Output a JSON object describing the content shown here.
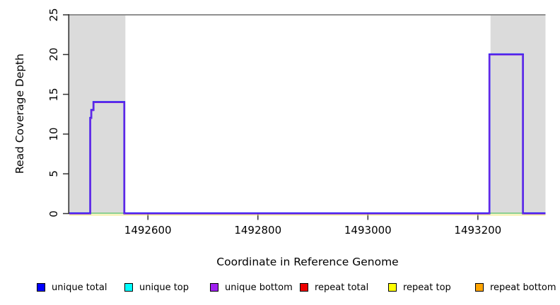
{
  "chart_data": {
    "type": "line",
    "title": "",
    "xlabel": "Coordinate in Reference Genome",
    "ylabel": "Read Coverage Depth",
    "xlim": [
      1492457,
      1493323
    ],
    "ylim": [
      0,
      25
    ],
    "x_ticks": [
      1492600,
      1492800,
      1493000,
      1493200
    ],
    "x_tick_labels": [
      "1492600",
      "1492800",
      "1493000",
      "1493200"
    ],
    "y_ticks": [
      0,
      5,
      10,
      15,
      20,
      25
    ],
    "y_tick_labels": [
      "0",
      "5",
      "10",
      "15",
      "20",
      "25"
    ],
    "grid": false,
    "legend_position": "bottom",
    "shaded_regions": [
      {
        "name": "repeat-region-left",
        "x0": 1492457,
        "x1": 1492559,
        "color": "#dbdbdb"
      },
      {
        "name": "repeat-region-right",
        "x0": 1493223,
        "x1": 1493323,
        "color": "#dbdbdb"
      }
    ],
    "series": [
      {
        "name": "unique total",
        "color": "#0000FF",
        "points": [
          [
            1492457,
            0
          ],
          [
            1492495,
            0
          ],
          [
            1492495,
            12
          ],
          [
            1492497,
            12
          ],
          [
            1492497,
            13
          ],
          [
            1492501,
            13
          ],
          [
            1492501,
            14
          ],
          [
            1492557,
            14
          ],
          [
            1492557,
            0
          ],
          [
            1493221,
            0
          ],
          [
            1493221,
            20
          ],
          [
            1493282,
            20
          ],
          [
            1493282,
            0
          ],
          [
            1493323,
            0
          ]
        ]
      },
      {
        "name": "unique top",
        "color": "#00FFFF",
        "points": [
          [
            1492457,
            0
          ],
          [
            1493323,
            0
          ]
        ]
      },
      {
        "name": "unique bottom",
        "color": "#A020F0",
        "points": [
          [
            1492457,
            0
          ],
          [
            1492495,
            0
          ],
          [
            1492495,
            12
          ],
          [
            1492497,
            12
          ],
          [
            1492497,
            13
          ],
          [
            1492501,
            13
          ],
          [
            1492501,
            14
          ],
          [
            1492557,
            14
          ],
          [
            1492557,
            0
          ],
          [
            1493221,
            0
          ],
          [
            1493221,
            20
          ],
          [
            1493282,
            20
          ],
          [
            1493282,
            0
          ],
          [
            1493323,
            0
          ]
        ]
      },
      {
        "name": "repeat total",
        "color": "#EE0000",
        "points": [
          [
            1492457,
            0
          ],
          [
            1493323,
            0
          ]
        ]
      },
      {
        "name": "repeat top",
        "color": "#FFFF00",
        "points": [
          [
            1492457,
            0
          ],
          [
            1493323,
            0
          ]
        ]
      },
      {
        "name": "repeat bottom",
        "color": "#FFA500",
        "points": [
          [
            1492457,
            0
          ],
          [
            1493323,
            0
          ]
        ]
      }
    ],
    "render_lines": [
      {
        "name": "repeat-zero-line",
        "color": "#EDE45C",
        "width": 1.2,
        "opacity": 0.8,
        "dy": 2,
        "points": [
          [
            1492457,
            0
          ],
          [
            1493323,
            0
          ]
        ]
      },
      {
        "name": "zero-overlap-left",
        "color": "#6EC66E",
        "width": 1.6,
        "opacity": 1,
        "dy": -0.5,
        "points": [
          [
            1492495,
            0
          ],
          [
            1492557,
            0
          ]
        ]
      },
      {
        "name": "zero-overlap-right",
        "color": "#6EC66E",
        "width": 1.6,
        "opacity": 1,
        "dy": -0.5,
        "points": [
          [
            1493221,
            0
          ],
          [
            1493282,
            0
          ]
        ]
      },
      {
        "name": "unique-total-line",
        "color": "#2212F5",
        "width": 2.6,
        "opacity": 1,
        "dy": -0.3,
        "points": [
          [
            1492457,
            0
          ],
          [
            1492495,
            0
          ],
          [
            1492495,
            12
          ],
          [
            1492497,
            12
          ],
          [
            1492497,
            13
          ],
          [
            1492501,
            13
          ],
          [
            1492501,
            14
          ],
          [
            1492557,
            14
          ],
          [
            1492557,
            0
          ],
          [
            1493221,
            0
          ],
          [
            1493221,
            20
          ],
          [
            1493282,
            20
          ],
          [
            1493282,
            0
          ],
          [
            1493323,
            0
          ]
        ]
      },
      {
        "name": "unique-bottom-line",
        "color": "#742BE2",
        "width": 1.5,
        "opacity": 1,
        "dy": 0.4,
        "points": [
          [
            1492457,
            0
          ],
          [
            1492495,
            0
          ],
          [
            1492495,
            12
          ],
          [
            1492497,
            12
          ],
          [
            1492497,
            13
          ],
          [
            1492501,
            13
          ],
          [
            1492501,
            14
          ],
          [
            1492557,
            14
          ],
          [
            1492557,
            0
          ],
          [
            1493221,
            0
          ],
          [
            1493221,
            20
          ],
          [
            1493282,
            20
          ],
          [
            1493282,
            0
          ],
          [
            1493323,
            0
          ]
        ]
      }
    ]
  },
  "legend": {
    "items": [
      {
        "label": "unique total",
        "color": "#0000FF"
      },
      {
        "label": "unique top",
        "color": "#00FFFF"
      },
      {
        "label": "unique bottom",
        "color": "#A020F0"
      },
      {
        "label": "repeat total",
        "color": "#EE0000"
      },
      {
        "label": "repeat top",
        "color": "#FFFF00"
      },
      {
        "label": "repeat bottom",
        "color": "#FFA500"
      }
    ]
  },
  "colors": {
    "shaded_region": "#dbdbdb",
    "top_border": "#909090",
    "axis": "#333333",
    "text": "#000000"
  }
}
